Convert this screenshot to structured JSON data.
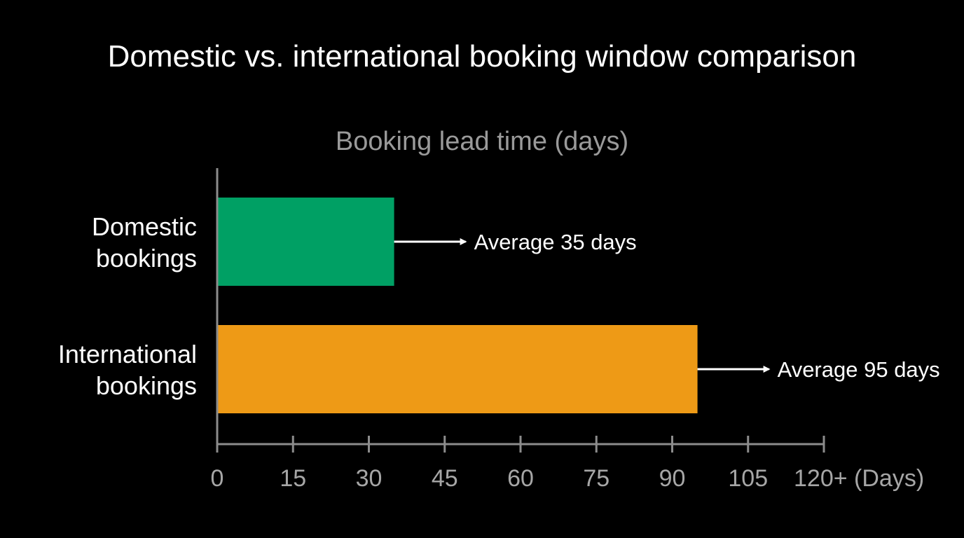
{
  "colors": {
    "background": "#000000",
    "axis": "#8c8c8c",
    "tick_label": "#a6a6a6",
    "subtitle": "#9a9a9a",
    "text": "#ffffff"
  },
  "chart_data": {
    "type": "bar",
    "orientation": "horizontal",
    "title": "Domestic vs. international booking window comparison",
    "subtitle": "Booking lead time (days)",
    "categories": [
      "Domestic bookings",
      "International bookings"
    ],
    "category_lines": [
      [
        "Domestic",
        "bookings"
      ],
      [
        "International",
        "bookings"
      ]
    ],
    "values": [
      35,
      95
    ],
    "bar_colors": [
      "#00a064",
      "#ee9a16"
    ],
    "annotations": [
      "Average 35 days",
      "Average 95 days"
    ],
    "xlim": [
      0,
      120
    ],
    "x_ticks": [
      0,
      15,
      30,
      45,
      60,
      75,
      90,
      105,
      120
    ],
    "x_tick_labels": [
      "0",
      "15",
      "30",
      "45",
      "60",
      "75",
      "90",
      "105",
      "120+ (Days)"
    ],
    "grid": false,
    "legend": "none"
  }
}
